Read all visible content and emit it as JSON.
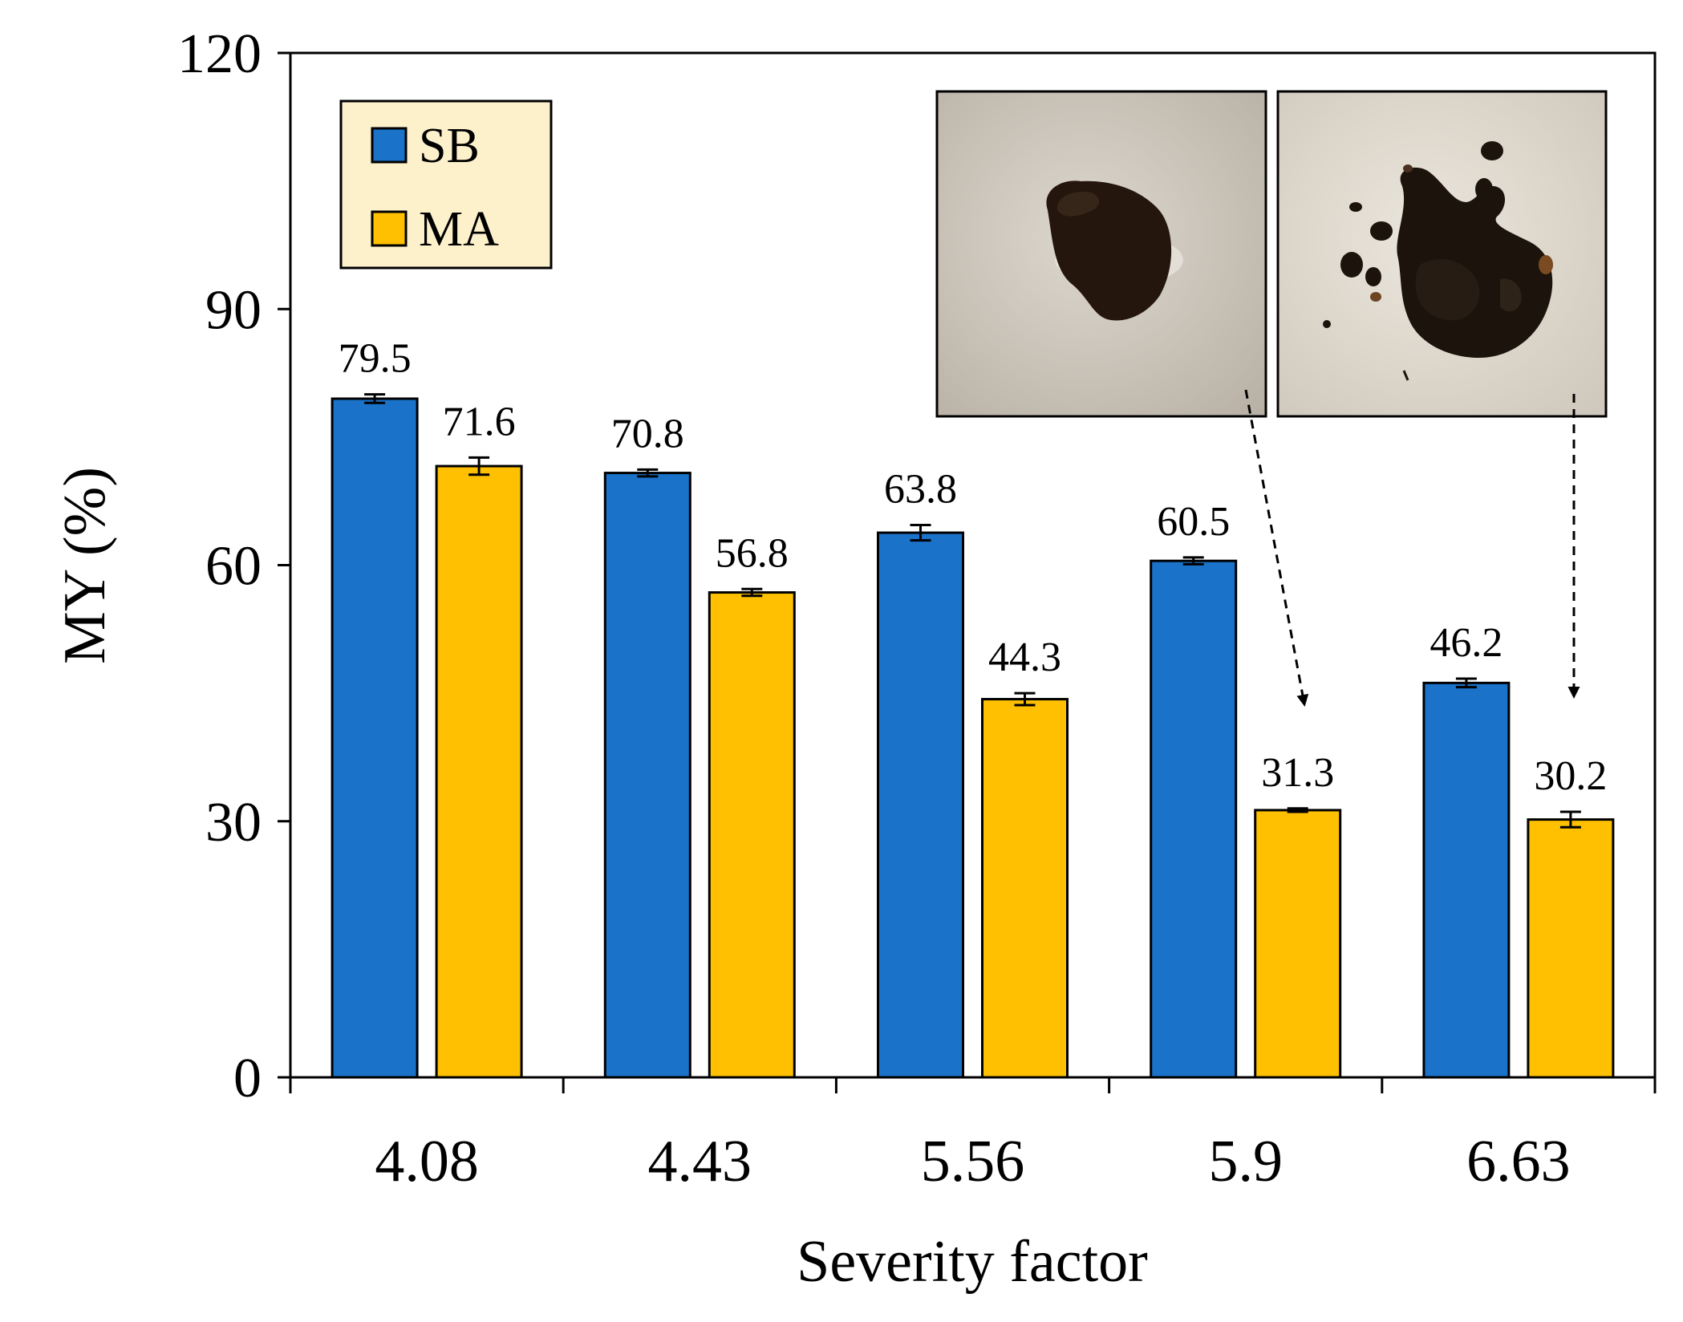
{
  "chart_data": {
    "type": "bar",
    "title": "",
    "xlabel": "Severity factor",
    "ylabel": "MY (%)",
    "ylim": [
      0,
      120
    ],
    "yticks": [
      0,
      30,
      60,
      90,
      120
    ],
    "categories": [
      "4.08",
      "4.43",
      "5.56",
      "5.9",
      "6.63"
    ],
    "series": [
      {
        "name": "SB",
        "color": "#1a72c9",
        "values": [
          79.5,
          70.8,
          63.8,
          60.5,
          46.2
        ],
        "labels": [
          "79.5",
          "70.8",
          "63.8",
          "60.5",
          "46.2"
        ],
        "errors": [
          0.5,
          0.4,
          0.9,
          0.4,
          0.5
        ]
      },
      {
        "name": "MA",
        "color": "#fec000",
        "values": [
          71.6,
          56.8,
          44.3,
          31.3,
          30.2
        ],
        "labels": [
          "71.6",
          "56.8",
          "44.3",
          "31.3",
          "30.2"
        ],
        "errors": [
          1.0,
          0.4,
          0.7,
          0.2,
          0.9
        ]
      }
    ],
    "legend": {
      "position": "top-left",
      "background": "#fdf1cc"
    },
    "annotations": {
      "photos": [
        {
          "name": "solid-residue-photo",
          "arrow_to": {
            "series": "MA",
            "category": "5.9"
          }
        },
        {
          "name": "liquid-residue-photo",
          "arrow_to": {
            "series": "MA",
            "category": "6.63"
          }
        }
      ]
    },
    "grid": false
  }
}
